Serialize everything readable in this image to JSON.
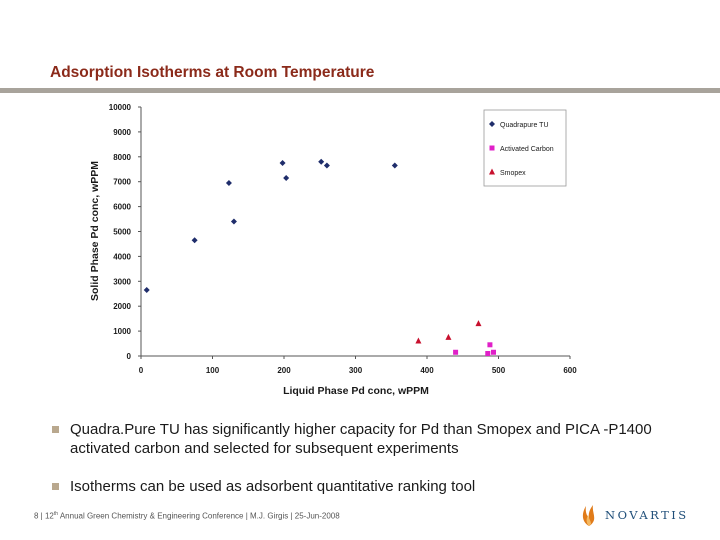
{
  "slide": {
    "title": "Adsorption Isotherms at Room Temperature",
    "bullets": [
      "Quadra.Pure TU has significantly higher capacity for Pd than Smopex and PICA -P1400 activated carbon and selected for subsequent experiments",
      "Isotherms can be used as adsorbent quantitative ranking tool"
    ],
    "footer": {
      "page": "8",
      "sep1": " | 12",
      "sup": "th",
      "rest": " Annual Green Chemistry & Engineering Conference | M.J. Girgis | 25-Jun-2008"
    },
    "logo_text": "NOVARTIS",
    "colors": {
      "title": "#8b2a1a",
      "rule": "#a8a39b",
      "bullet": "#b9a88e",
      "logo": "#1f4e79",
      "logo_mark": "#e07b1a"
    }
  },
  "chart_data": {
    "type": "scatter",
    "xlabel": "Liquid Phase Pd conc, wPPM",
    "ylabel": "Solid Phase Pd conc, wPPM",
    "xlim": [
      0,
      600
    ],
    "ylim": [
      0,
      10000
    ],
    "xticks": [
      0,
      100,
      200,
      300,
      400,
      500,
      600
    ],
    "yticks": [
      0,
      1000,
      2000,
      3000,
      4000,
      5000,
      6000,
      7000,
      8000,
      9000,
      10000
    ],
    "grid": false,
    "legend_position": "top-right",
    "series": [
      {
        "name": "Quadrapure TU",
        "marker": "diamond",
        "color": "#1f2d6b",
        "points": [
          [
            8,
            2650
          ],
          [
            75,
            4650
          ],
          [
            123,
            6950
          ],
          [
            130,
            5400
          ],
          [
            198,
            7750
          ],
          [
            203,
            7150
          ],
          [
            252,
            7800
          ],
          [
            260,
            7650
          ],
          [
            355,
            7650
          ]
        ]
      },
      {
        "name": "Activated Carbon",
        "marker": "square",
        "color": "#e020c8",
        "points": [
          [
            440,
            150
          ],
          [
            488,
            450
          ],
          [
            485,
            100
          ],
          [
            493,
            150
          ]
        ]
      },
      {
        "name": "Smopex",
        "marker": "triangle",
        "color": "#c8102e",
        "points": [
          [
            388,
            600
          ],
          [
            430,
            750
          ],
          [
            472,
            1300
          ]
        ]
      }
    ]
  }
}
